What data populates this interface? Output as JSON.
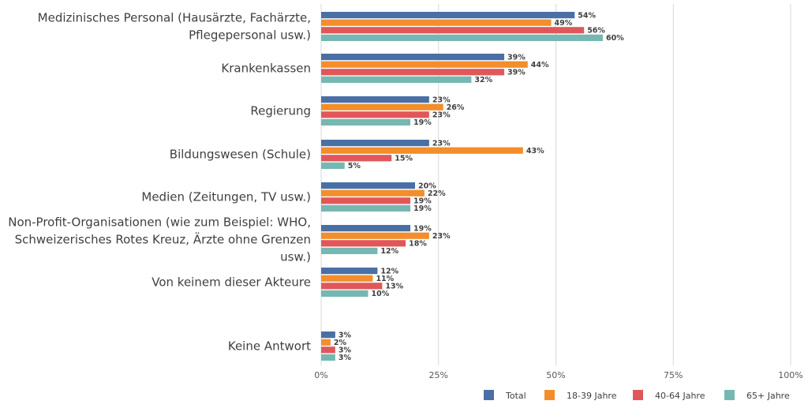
{
  "chart_data": {
    "type": "bar",
    "orientation": "horizontal",
    "categories": [
      [
        "Medizinisches Personal (Hausärzte, Fachärzte,",
        "Pflegepersonal usw.)"
      ],
      [
        "Krankenkassen"
      ],
      [
        "Regierung"
      ],
      [
        "Bildungswesen (Schule)"
      ],
      [
        "Medien (Zeitungen, TV usw.)"
      ],
      [
        "Non-Profit-Organisationen (wie zum Beispiel: WHO,",
        "Schweizerisches Rotes Kreuz, Ärzte ohne Grenzen",
        "usw.)"
      ],
      [
        "Von keinem dieser Akteure"
      ],
      [
        "Keine Antwort"
      ]
    ],
    "series": [
      {
        "name": "Total",
        "color": "#4a6fa5",
        "values": [
          54,
          39,
          23,
          23,
          20,
          19,
          12,
          3
        ]
      },
      {
        "name": "18-39 Jahre",
        "color": "#f28e2b",
        "values": [
          49,
          44,
          26,
          43,
          22,
          23,
          11,
          2
        ]
      },
      {
        "name": "40-64 Jahre",
        "color": "#e15759",
        "values": [
          56,
          39,
          23,
          15,
          19,
          18,
          13,
          3
        ]
      },
      {
        "name": "65+ Jahre",
        "color": "#76b7b2",
        "values": [
          60,
          32,
          19,
          5,
          19,
          12,
          10,
          3
        ]
      }
    ],
    "value_suffix": "%",
    "xlim": [
      0,
      100
    ],
    "xticks": [
      {
        "value": 0,
        "label": "0%"
      },
      {
        "value": 25,
        "label": "25%"
      },
      {
        "value": 50,
        "label": "50%"
      },
      {
        "value": 75,
        "label": "75%"
      },
      {
        "value": 100,
        "label": "100%"
      }
    ],
    "grid": true,
    "legend_position": "bottom-right"
  }
}
